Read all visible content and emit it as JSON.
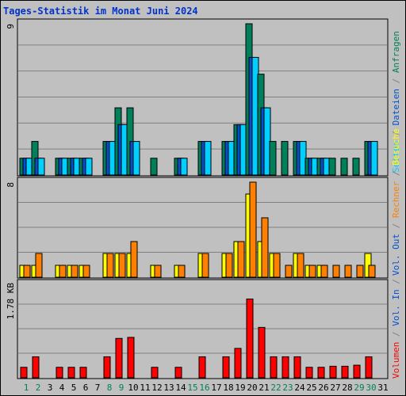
{
  "title": "Tages-Statistik im Monat Juni 2024",
  "chart_data": [
    {
      "type": "bar",
      "panel": "top",
      "y_max_label": "9",
      "ylim": [
        0,
        9
      ],
      "x": [
        1,
        2,
        3,
        4,
        5,
        6,
        7,
        8,
        9,
        10,
        11,
        12,
        13,
        14,
        15,
        16,
        17,
        18,
        19,
        20,
        21,
        22,
        23,
        24,
        25,
        26,
        27,
        28,
        29,
        30,
        31
      ],
      "side_labels": [
        "Anfragen",
        "Dateien",
        "Seiten"
      ],
      "series": [
        {
          "name": "Anfragen",
          "color": "#00805a",
          "values": [
            1,
            2,
            0,
            1,
            1,
            1,
            0,
            2,
            4,
            4,
            0,
            1,
            0,
            1,
            0,
            2,
            0,
            2,
            3,
            9,
            6,
            2,
            2,
            2,
            1,
            1,
            1,
            1,
            1,
            2,
            0
          ]
        },
        {
          "name": "Dateien",
          "color": "#0050d0",
          "values": [
            1,
            1,
            0,
            1,
            1,
            1,
            0,
            2,
            3,
            2,
            0,
            0,
            0,
            1,
            0,
            2,
            0,
            2,
            3,
            7,
            4,
            0,
            0,
            2,
            1,
            1,
            0,
            0,
            0,
            2,
            0
          ]
        },
        {
          "name": "Seiten",
          "color": "#00d0ff",
          "values": [
            1,
            1,
            0,
            1,
            1,
            1,
            0,
            2,
            3,
            2,
            0,
            0,
            0,
            1,
            0,
            2,
            0,
            2,
            3,
            7,
            4,
            0,
            0,
            2,
            1,
            1,
            0,
            0,
            0,
            2,
            0
          ]
        }
      ]
    },
    {
      "type": "bar",
      "panel": "middle",
      "y_max_label": "8",
      "ylim": [
        0,
        8
      ],
      "x": [
        1,
        2,
        3,
        4,
        5,
        6,
        7,
        8,
        9,
        10,
        11,
        12,
        13,
        14,
        15,
        16,
        17,
        18,
        19,
        20,
        21,
        22,
        23,
        24,
        25,
        26,
        27,
        28,
        29,
        30,
        31
      ],
      "side_labels": [
        "Besuche",
        "Rechner"
      ],
      "series": [
        {
          "name": "Besuche",
          "color": "#ffff00",
          "values": [
            1,
            1,
            0,
            1,
            1,
            1,
            0,
            2,
            2,
            2,
            0,
            1,
            0,
            1,
            0,
            2,
            0,
            2,
            3,
            7,
            3,
            2,
            0,
            2,
            1,
            1,
            0,
            0,
            0,
            2,
            0
          ]
        },
        {
          "name": "Rechner",
          "color": "#ff8000",
          "values": [
            1,
            2,
            0,
            1,
            1,
            1,
            0,
            2,
            2,
            3,
            0,
            1,
            0,
            1,
            0,
            2,
            0,
            2,
            3,
            8,
            5,
            2,
            1,
            2,
            1,
            1,
            1,
            1,
            1,
            1,
            0
          ]
        }
      ]
    },
    {
      "type": "bar",
      "panel": "bottom",
      "y_max_label": "1.78 KB",
      "ylim": [
        0,
        1.78
      ],
      "x": [
        1,
        2,
        3,
        4,
        5,
        6,
        7,
        8,
        9,
        10,
        11,
        12,
        13,
        14,
        15,
        16,
        17,
        18,
        19,
        20,
        21,
        22,
        23,
        24,
        25,
        26,
        27,
        28,
        29,
        30,
        31
      ],
      "side_labels": [
        "Volumen",
        "Vol. In",
        "Vol. Out"
      ],
      "series": [
        {
          "name": "Volumen",
          "color": "#ff0000",
          "values": [
            0.2,
            0.4,
            0,
            0.2,
            0.2,
            0.2,
            0,
            0.4,
            0.75,
            0.77,
            0,
            0.2,
            0,
            0.2,
            0,
            0.4,
            0,
            0.4,
            0.56,
            1.5,
            0.96,
            0.4,
            0.4,
            0.4,
            0.2,
            0.2,
            0.22,
            0.22,
            0.24,
            0.4,
            0
          ]
        }
      ]
    }
  ],
  "x_ticks": [
    "1",
    "2",
    "3",
    "4",
    "5",
    "6",
    "7",
    "8",
    "9",
    "10",
    "11",
    "12",
    "13",
    "14",
    "15",
    "16",
    "17",
    "18",
    "19",
    "20",
    "21",
    "22",
    "23",
    "24",
    "25",
    "26",
    "27",
    "28",
    "29",
    "30",
    "31"
  ],
  "weekend_days": [
    1,
    2,
    8,
    9,
    15,
    16,
    22,
    23,
    29,
    30
  ],
  "colors": {
    "weekday_tick": "#000000",
    "weekend_tick": "#00805a",
    "grid": "#808080",
    "separator": "#808080"
  }
}
